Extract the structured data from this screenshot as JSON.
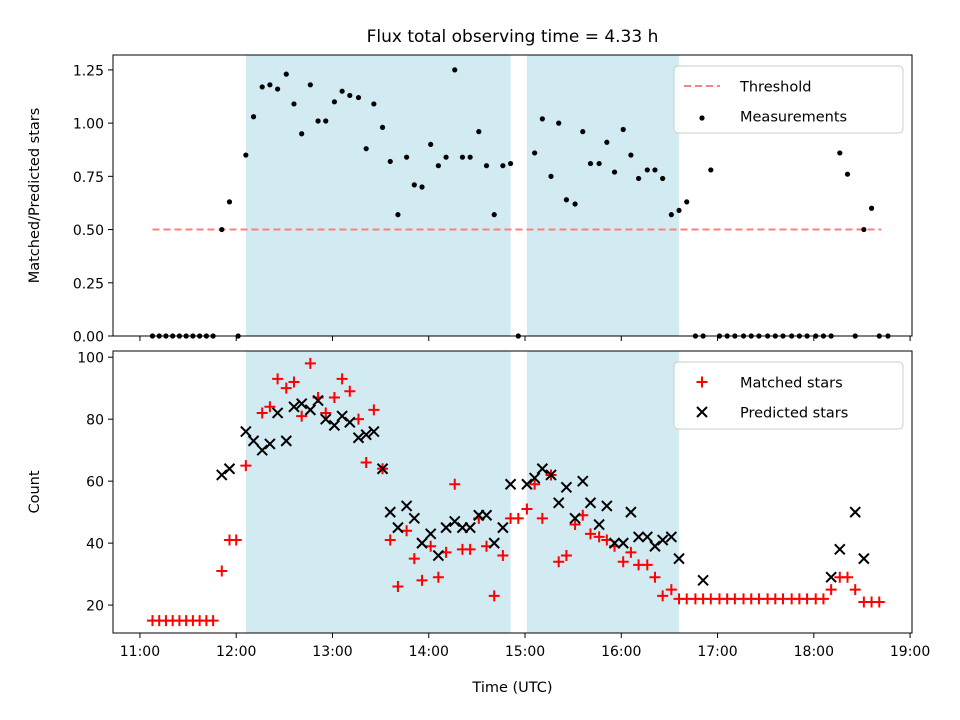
{
  "chart_data": [
    {
      "type": "scatter",
      "title": "Flux total observing time = 4.33 h",
      "xlabel": "",
      "ylabel": "Matched/Predicted stars",
      "xlim": [
        10.72,
        19.02
      ],
      "ylim": [
        0.0,
        1.32
      ],
      "yticks": [
        0.0,
        0.25,
        0.5,
        0.75,
        1.0,
        1.25
      ],
      "ytick_labels": [
        "0.00",
        "0.25",
        "0.50",
        "0.75",
        "1.00",
        "1.25"
      ],
      "xticks": [
        11,
        12,
        13,
        14,
        15,
        16,
        17,
        18,
        19
      ],
      "show_xtick_labels": false,
      "legend": {
        "placement": "top-right",
        "entries": [
          "Threshold",
          "Measurements"
        ]
      },
      "shaded_intervals": [
        [
          12.1,
          14.85
        ],
        [
          15.02,
          16.6
        ]
      ],
      "shade_color": "#add8e6",
      "threshold": {
        "name": "Threshold",
        "value": 0.5,
        "x_range": [
          11.13,
          18.7
        ],
        "color": "#ff7f7f"
      },
      "series": [
        {
          "name": "Measurements",
          "marker": "dot",
          "color": "#000000",
          "points": [
            [
              11.13,
              0.0
            ],
            [
              11.2,
              0.0
            ],
            [
              11.27,
              0.0
            ],
            [
              11.34,
              0.0
            ],
            [
              11.41,
              0.0
            ],
            [
              11.48,
              0.0
            ],
            [
              11.55,
              0.0
            ],
            [
              11.62,
              0.0
            ],
            [
              11.69,
              0.0
            ],
            [
              11.76,
              0.0
            ],
            [
              11.85,
              0.5
            ],
            [
              11.93,
              0.63
            ],
            [
              12.02,
              0.0
            ],
            [
              12.1,
              0.85
            ],
            [
              12.18,
              1.03
            ],
            [
              12.27,
              1.17
            ],
            [
              12.35,
              1.18
            ],
            [
              12.43,
              1.16
            ],
            [
              12.52,
              1.23
            ],
            [
              12.6,
              1.09
            ],
            [
              12.68,
              0.95
            ],
            [
              12.77,
              1.18
            ],
            [
              12.85,
              1.01
            ],
            [
              12.93,
              1.01
            ],
            [
              13.02,
              1.1
            ],
            [
              13.1,
              1.15
            ],
            [
              13.18,
              1.13
            ],
            [
              13.27,
              1.12
            ],
            [
              13.35,
              0.88
            ],
            [
              13.43,
              1.09
            ],
            [
              13.52,
              0.98
            ],
            [
              13.6,
              0.82
            ],
            [
              13.68,
              0.57
            ],
            [
              13.77,
              0.84
            ],
            [
              13.85,
              0.71
            ],
            [
              13.93,
              0.7
            ],
            [
              14.02,
              0.9
            ],
            [
              14.1,
              0.8
            ],
            [
              14.18,
              0.84
            ],
            [
              14.27,
              1.25
            ],
            [
              14.35,
              0.84
            ],
            [
              14.43,
              0.84
            ],
            [
              14.52,
              0.96
            ],
            [
              14.6,
              0.8
            ],
            [
              14.68,
              0.57
            ],
            [
              14.77,
              0.8
            ],
            [
              14.85,
              0.81
            ],
            [
              14.93,
              0.0
            ],
            [
              15.1,
              0.86
            ],
            [
              15.18,
              1.02
            ],
            [
              15.27,
              0.75
            ],
            [
              15.35,
              1.0
            ],
            [
              15.43,
              0.64
            ],
            [
              15.52,
              0.62
            ],
            [
              15.6,
              0.96
            ],
            [
              15.68,
              0.81
            ],
            [
              15.77,
              0.81
            ],
            [
              15.85,
              0.91
            ],
            [
              15.93,
              0.77
            ],
            [
              16.02,
              0.97
            ],
            [
              16.1,
              0.85
            ],
            [
              16.18,
              0.74
            ],
            [
              16.27,
              0.78
            ],
            [
              16.35,
              0.78
            ],
            [
              16.43,
              0.74
            ],
            [
              16.52,
              0.57
            ],
            [
              16.6,
              0.59
            ],
            [
              16.68,
              0.63
            ],
            [
              16.77,
              0.0
            ],
            [
              16.85,
              0.0
            ],
            [
              16.93,
              0.78
            ],
            [
              17.02,
              0.0
            ],
            [
              17.1,
              0.0
            ],
            [
              17.18,
              0.0
            ],
            [
              17.27,
              0.0
            ],
            [
              17.35,
              0.0
            ],
            [
              17.43,
              0.0
            ],
            [
              17.52,
              0.0
            ],
            [
              17.6,
              0.0
            ],
            [
              17.68,
              0.0
            ],
            [
              17.77,
              0.0
            ],
            [
              17.85,
              0.0
            ],
            [
              17.93,
              0.0
            ],
            [
              18.02,
              0.0
            ],
            [
              18.1,
              0.0
            ],
            [
              18.18,
              0.0
            ],
            [
              18.27,
              0.86
            ],
            [
              18.35,
              0.76
            ],
            [
              18.43,
              0.0
            ],
            [
              18.52,
              0.5
            ],
            [
              18.6,
              0.6
            ],
            [
              18.68,
              0.0
            ],
            [
              18.77,
              0.0
            ]
          ]
        }
      ]
    },
    {
      "type": "scatter",
      "title": "",
      "xlabel": "Time (UTC)",
      "ylabel": "Count",
      "xlim": [
        10.72,
        19.02
      ],
      "ylim": [
        11,
        102
      ],
      "yticks": [
        20,
        40,
        60,
        80,
        100
      ],
      "ytick_labels": [
        "20",
        "40",
        "60",
        "80",
        "100"
      ],
      "xticks": [
        11,
        12,
        13,
        14,
        15,
        16,
        17,
        18,
        19
      ],
      "xtick_labels": [
        "11:00",
        "12:00",
        "13:00",
        "14:00",
        "15:00",
        "16:00",
        "17:00",
        "18:00",
        "19:00"
      ],
      "show_xtick_labels": true,
      "legend": {
        "placement": "top-right",
        "entries": [
          "Matched stars",
          "Predicted stars"
        ]
      },
      "shaded_intervals": [
        [
          12.1,
          14.85
        ],
        [
          15.02,
          16.6
        ]
      ],
      "shade_color": "#add8e6",
      "series": [
        {
          "name": "Matched stars",
          "marker": "plus",
          "color": "#ff0000",
          "points": [
            [
              11.13,
              15
            ],
            [
              11.2,
              15
            ],
            [
              11.27,
              15
            ],
            [
              11.34,
              15
            ],
            [
              11.41,
              15
            ],
            [
              11.48,
              15
            ],
            [
              11.55,
              15
            ],
            [
              11.62,
              15
            ],
            [
              11.69,
              15
            ],
            [
              11.76,
              15
            ],
            [
              11.85,
              31
            ],
            [
              11.93,
              41
            ],
            [
              12.0,
              41
            ],
            [
              12.1,
              65
            ],
            [
              12.27,
              82
            ],
            [
              12.35,
              84
            ],
            [
              12.43,
              93
            ],
            [
              12.52,
              90
            ],
            [
              12.6,
              92
            ],
            [
              12.68,
              81
            ],
            [
              12.77,
              98
            ],
            [
              12.85,
              87
            ],
            [
              12.93,
              82
            ],
            [
              13.02,
              87
            ],
            [
              13.1,
              93
            ],
            [
              13.18,
              89
            ],
            [
              13.27,
              80
            ],
            [
              13.35,
              66
            ],
            [
              13.43,
              83
            ],
            [
              13.52,
              64
            ],
            [
              13.6,
              41
            ],
            [
              13.68,
              26
            ],
            [
              13.77,
              44
            ],
            [
              13.85,
              35
            ],
            [
              13.93,
              28
            ],
            [
              14.02,
              39
            ],
            [
              14.1,
              29
            ],
            [
              14.18,
              37
            ],
            [
              14.27,
              59
            ],
            [
              14.35,
              38
            ],
            [
              14.43,
              38
            ],
            [
              14.52,
              48
            ],
            [
              14.6,
              39
            ],
            [
              14.68,
              23
            ],
            [
              14.77,
              36
            ],
            [
              14.85,
              48
            ],
            [
              14.93,
              48
            ],
            [
              15.02,
              51
            ],
            [
              15.1,
              59
            ],
            [
              15.18,
              48
            ],
            [
              15.27,
              62
            ],
            [
              15.35,
              34
            ],
            [
              15.43,
              36
            ],
            [
              15.52,
              46
            ],
            [
              15.6,
              49
            ],
            [
              15.68,
              43
            ],
            [
              15.77,
              42
            ],
            [
              15.85,
              41
            ],
            [
              15.93,
              39
            ],
            [
              16.02,
              34
            ],
            [
              16.1,
              37
            ],
            [
              16.18,
              33
            ],
            [
              16.27,
              33
            ],
            [
              16.35,
              29
            ],
            [
              16.43,
              23
            ],
            [
              16.52,
              25
            ],
            [
              16.6,
              22
            ],
            [
              16.68,
              22
            ],
            [
              16.77,
              22
            ],
            [
              16.85,
              22
            ],
            [
              16.93,
              22
            ],
            [
              17.02,
              22
            ],
            [
              17.1,
              22
            ],
            [
              17.18,
              22
            ],
            [
              17.27,
              22
            ],
            [
              17.35,
              22
            ],
            [
              17.43,
              22
            ],
            [
              17.52,
              22
            ],
            [
              17.6,
              22
            ],
            [
              17.68,
              22
            ],
            [
              17.77,
              22
            ],
            [
              17.85,
              22
            ],
            [
              17.93,
              22
            ],
            [
              18.02,
              22
            ],
            [
              18.1,
              22
            ],
            [
              18.18,
              25
            ],
            [
              18.27,
              29
            ],
            [
              18.35,
              29
            ],
            [
              18.43,
              25
            ],
            [
              18.52,
              21
            ],
            [
              18.6,
              21
            ],
            [
              18.68,
              21
            ]
          ]
        },
        {
          "name": "Predicted stars",
          "marker": "x",
          "color": "#000000",
          "points": [
            [
              11.85,
              62
            ],
            [
              11.93,
              64
            ],
            [
              12.1,
              76
            ],
            [
              12.18,
              73
            ],
            [
              12.27,
              70
            ],
            [
              12.35,
              72
            ],
            [
              12.43,
              82
            ],
            [
              12.52,
              73
            ],
            [
              12.6,
              84
            ],
            [
              12.68,
              85
            ],
            [
              12.77,
              83
            ],
            [
              12.85,
              86
            ],
            [
              12.93,
              80
            ],
            [
              13.02,
              78
            ],
            [
              13.1,
              81
            ],
            [
              13.18,
              79
            ],
            [
              13.27,
              74
            ],
            [
              13.35,
              75
            ],
            [
              13.43,
              76
            ],
            [
              13.52,
              64
            ],
            [
              13.6,
              50
            ],
            [
              13.68,
              45
            ],
            [
              13.77,
              52
            ],
            [
              13.85,
              48
            ],
            [
              13.93,
              40
            ],
            [
              14.02,
              43
            ],
            [
              14.1,
              36
            ],
            [
              14.18,
              45
            ],
            [
              14.27,
              47
            ],
            [
              14.35,
              45
            ],
            [
              14.43,
              45
            ],
            [
              14.52,
              49
            ],
            [
              14.6,
              49
            ],
            [
              14.68,
              40
            ],
            [
              14.77,
              45
            ],
            [
              14.85,
              59
            ],
            [
              15.02,
              59
            ],
            [
              15.1,
              61
            ],
            [
              15.18,
              64
            ],
            [
              15.27,
              62
            ],
            [
              15.35,
              53
            ],
            [
              15.43,
              58
            ],
            [
              15.52,
              48
            ],
            [
              15.6,
              60
            ],
            [
              15.68,
              53
            ],
            [
              15.77,
              46
            ],
            [
              15.85,
              52
            ],
            [
              15.93,
              40
            ],
            [
              16.02,
              40
            ],
            [
              16.1,
              50
            ],
            [
              16.18,
              42
            ],
            [
              16.27,
              42
            ],
            [
              16.35,
              39
            ],
            [
              16.43,
              41
            ],
            [
              16.52,
              42
            ],
            [
              16.6,
              35
            ],
            [
              16.85,
              28
            ],
            [
              18.18,
              29
            ],
            [
              18.27,
              38
            ],
            [
              18.43,
              50
            ],
            [
              18.52,
              35
            ]
          ]
        }
      ]
    }
  ]
}
